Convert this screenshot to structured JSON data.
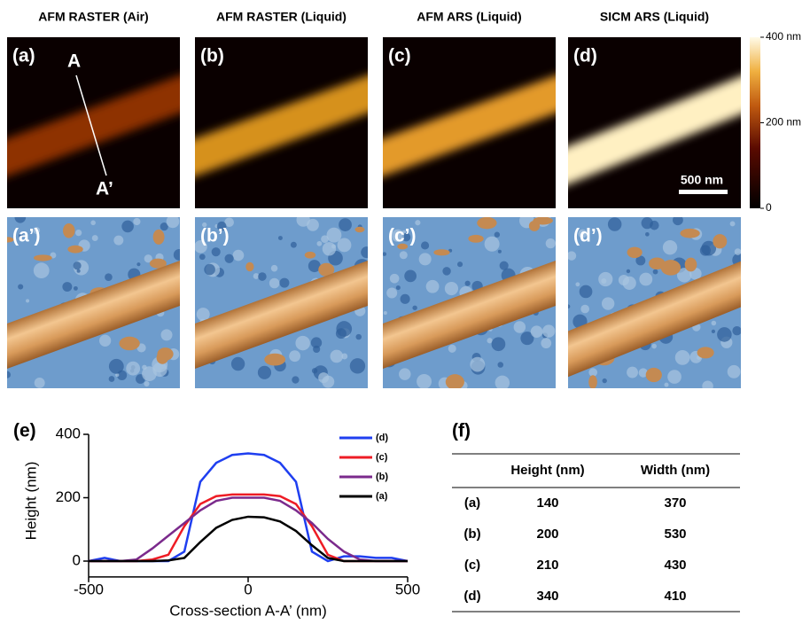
{
  "panels": [
    {
      "title": "AFM RASTER (Air)",
      "label": "(a)",
      "label_3d": "(a’)"
    },
    {
      "title": "AFM RASTER (Liquid)",
      "label": "(b)",
      "label_3d": "(b’)"
    },
    {
      "title": "AFM ARS (Liquid)",
      "label": "(c)",
      "label_3d": "(c’)"
    },
    {
      "title": "SICM ARS (Liquid)",
      "label": "(d)",
      "label_3d": "(d’)"
    }
  ],
  "annotations": {
    "start": "A",
    "end": "A’",
    "scale_bar": "500 nm"
  },
  "colorbar": {
    "lim": [
      0,
      400
    ],
    "ticks": [
      {
        "value": 400,
        "label": "400 nm"
      },
      {
        "value": 200,
        "label": "200 nm"
      },
      0
    ]
  },
  "chart_data": {
    "type": "line",
    "label": "(e)",
    "xlabel": "Cross-section A-A’ (nm)",
    "ylabel": "Height (nm)",
    "x": [
      -500,
      -450,
      -400,
      -350,
      -300,
      -250,
      -200,
      -150,
      -100,
      -50,
      0,
      50,
      100,
      150,
      200,
      250,
      300,
      350,
      400,
      450,
      500
    ],
    "series": [
      {
        "name": "(d)",
        "color": "#1f3ff0",
        "values": [
          0,
          10,
          0,
          0,
          0,
          0,
          30,
          250,
          310,
          335,
          340,
          335,
          310,
          250,
          30,
          0,
          15,
          15,
          10,
          10,
          0
        ]
      },
      {
        "name": "(c)",
        "color": "#ee1c25",
        "values": [
          0,
          0,
          0,
          0,
          5,
          20,
          110,
          180,
          205,
          210,
          210,
          210,
          205,
          180,
          110,
          20,
          0,
          0,
          0,
          0,
          0
        ]
      },
      {
        "name": "(b)",
        "color": "#7b2a8c",
        "values": [
          0,
          0,
          0,
          5,
          40,
          80,
          120,
          160,
          190,
          200,
          200,
          200,
          190,
          160,
          120,
          70,
          30,
          5,
          0,
          0,
          0
        ]
      },
      {
        "name": "(a)",
        "color": "#000000",
        "values": [
          0,
          0,
          0,
          0,
          0,
          2,
          10,
          60,
          105,
          130,
          140,
          138,
          125,
          95,
          50,
          10,
          0,
          0,
          0,
          0,
          0
        ]
      }
    ],
    "xlim": [
      -500,
      500
    ],
    "ylim": [
      -50,
      400
    ],
    "xticks": [
      -500,
      0,
      500
    ],
    "yticks": [
      0,
      200,
      400
    ]
  },
  "table": {
    "label": "(f)",
    "header": [
      "Height (nm)",
      "Width (nm)"
    ],
    "rows": [
      [
        "(a)",
        140,
        370
      ],
      [
        "(b)",
        200,
        530
      ],
      [
        "(c)",
        210,
        430
      ],
      [
        "(d)",
        340,
        410
      ]
    ]
  }
}
